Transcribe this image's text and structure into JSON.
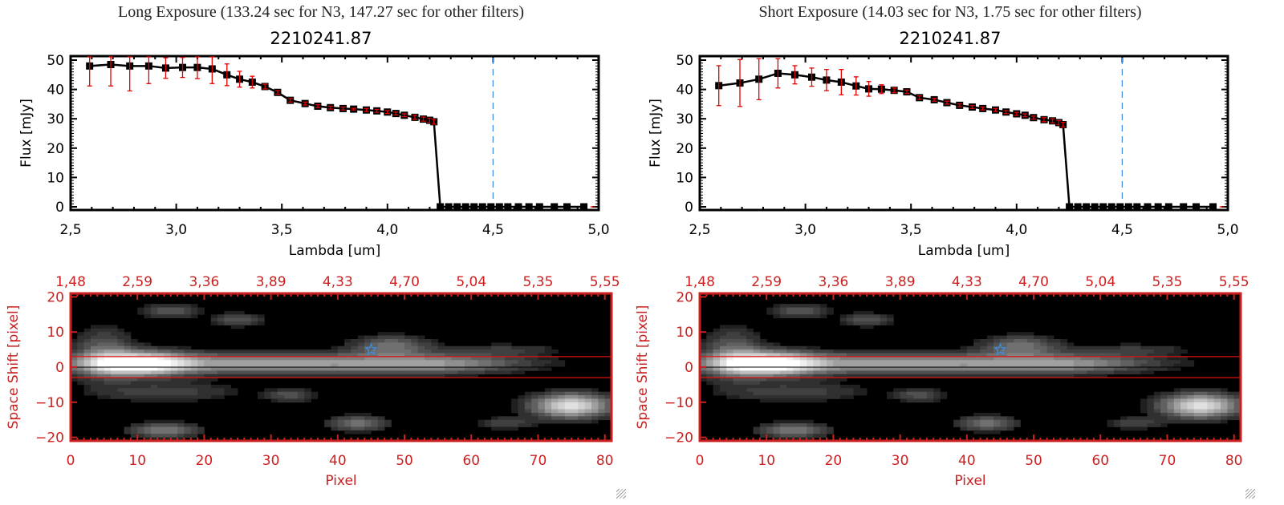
{
  "panels": [
    {
      "title": "Long Exposure (133.24 sec for N3, 147.27 sec for other filters)",
      "object_id": "2210241.87"
    },
    {
      "title": "Short Exposure (14.03 sec for N3, 1.75 sec for other filters)",
      "object_id": "2210241.87"
    }
  ],
  "colors": {
    "spectrum": "#000000",
    "error": "#e00000",
    "marker_line": "#3a8ee6",
    "image_axis": "#cc2020",
    "aperture": "#dd1111"
  },
  "chart_data": [
    {
      "type": "line",
      "title": "2210241.87",
      "xlabel": "Lambda [um]",
      "ylabel": "Flux [mJy]",
      "xlim": [
        2.5,
        5.0
      ],
      "ylim": [
        0,
        50
      ],
      "xticks": [
        "2.5",
        "3.0",
        "3.5",
        "4.0",
        "4.5",
        "5.0"
      ],
      "yticks": [
        "0",
        "10",
        "20",
        "30",
        "40",
        "50"
      ],
      "vline_x": 4.5,
      "x": [
        2.59,
        2.69,
        2.78,
        2.87,
        2.95,
        3.03,
        3.1,
        3.17,
        3.24,
        3.3,
        3.36,
        3.42,
        3.48,
        3.54,
        3.61,
        3.67,
        3.73,
        3.79,
        3.84,
        3.9,
        3.95,
        4.0,
        4.04,
        4.08,
        4.13,
        4.17,
        4.2,
        4.22,
        4.25,
        4.29,
        4.33,
        4.37,
        4.41,
        4.45,
        4.49,
        4.53,
        4.57,
        4.62,
        4.67,
        4.72,
        4.79,
        4.85,
        4.93
      ],
      "y": [
        48,
        48.5,
        48,
        48,
        47.3,
        47.5,
        47.5,
        47,
        45,
        43.5,
        42.5,
        41,
        39,
        36.3,
        35.2,
        34.3,
        33.8,
        33.5,
        33.3,
        33,
        32.7,
        32.3,
        31.8,
        31.2,
        30.5,
        29.9,
        29.5,
        29,
        0,
        0,
        0,
        0,
        0,
        0,
        0,
        0,
        0,
        0,
        0,
        0,
        0,
        0,
        0
      ],
      "yerr": [
        6.8,
        7.3,
        8.5,
        6,
        3.5,
        3.4,
        3.8,
        5,
        3.7,
        2.7,
        2,
        0.8,
        0.6,
        0.6,
        0.5,
        0.5,
        0.5,
        0.5,
        0.3,
        0.5,
        0.5,
        0.5,
        0.5,
        0.5,
        0.7,
        0.7,
        0.7,
        0.8,
        0,
        0,
        0,
        0,
        0,
        0,
        0,
        0,
        0,
        0,
        0,
        0,
        0,
        0,
        0
      ]
    },
    {
      "type": "line",
      "title": "2210241.87",
      "xlabel": "Lambda [um]",
      "ylabel": "Flux [mJy]",
      "xlim": [
        2.5,
        5.0
      ],
      "ylim": [
        0,
        50
      ],
      "xticks": [
        "2.5",
        "3.0",
        "3.5",
        "4.0",
        "4.5",
        "5.0"
      ],
      "yticks": [
        "0",
        "10",
        "20",
        "30",
        "40",
        "50"
      ],
      "vline_x": 4.5,
      "x": [
        2.59,
        2.69,
        2.78,
        2.87,
        2.95,
        3.03,
        3.1,
        3.17,
        3.24,
        3.3,
        3.36,
        3.42,
        3.48,
        3.54,
        3.61,
        3.67,
        3.73,
        3.79,
        3.84,
        3.9,
        3.95,
        4.0,
        4.04,
        4.08,
        4.13,
        4.17,
        4.2,
        4.22,
        4.25,
        4.29,
        4.33,
        4.37,
        4.41,
        4.45,
        4.49,
        4.53,
        4.57,
        4.62,
        4.67,
        4.72,
        4.79,
        4.85,
        4.93
      ],
      "y": [
        41.3,
        42.2,
        43.5,
        45.5,
        45,
        44.2,
        43.2,
        42.5,
        41.2,
        40.2,
        40.1,
        39.7,
        39.2,
        37.2,
        36.5,
        35.5,
        34.6,
        34,
        33.5,
        33,
        32.3,
        31.7,
        31.2,
        30.4,
        29.7,
        29.3,
        28.7,
        28,
        0,
        0,
        0,
        0,
        0,
        0,
        0,
        0,
        0,
        0,
        0,
        0,
        0,
        0,
        0
      ],
      "yerr": [
        6.8,
        8,
        7,
        5,
        3.1,
        3.1,
        3.6,
        4.3,
        3.1,
        2.5,
        1.5,
        0.8,
        0.6,
        0.6,
        0.5,
        0.5,
        0.5,
        0.5,
        0.5,
        0.5,
        0.5,
        0.5,
        0.5,
        0.5,
        0.7,
        0.7,
        0.7,
        0.8,
        0,
        0,
        0,
        0,
        0,
        0,
        0,
        0,
        0,
        0,
        0,
        0,
        0,
        0,
        0
      ]
    },
    {
      "type": "heatmap",
      "xlabel": "Pixel",
      "ylabel": "Space Shift [pixel]",
      "xlim": [
        0,
        81
      ],
      "ylim": [
        -21,
        21
      ],
      "xticks": [
        "0",
        "10",
        "20",
        "30",
        "40",
        "50",
        "60",
        "70",
        "80"
      ],
      "yticks": [
        "-20",
        "-10",
        "0",
        "10",
        "20"
      ],
      "top_axis_ticks": [
        "1.48",
        "2.59",
        "3.36",
        "3.89",
        "4.33",
        "4.70",
        "5.04",
        "5.35",
        "5.55"
      ],
      "aperture_y": [
        -3,
        3
      ],
      "star_marker": {
        "x": 45,
        "y": 5
      },
      "sources": [
        {
          "x": 10,
          "y": 1,
          "sx": 5,
          "sy": 2.2,
          "amp": 1.0
        },
        {
          "x": 30,
          "y": 1,
          "sx": 20,
          "sy": 2,
          "amp": 0.55
        },
        {
          "x": 55,
          "y": 1,
          "sx": 8,
          "sy": 1.8,
          "amp": 0.3
        },
        {
          "x": 5,
          "y": 4,
          "sx": 3,
          "sy": 5,
          "amp": 0.3
        },
        {
          "x": 14,
          "y": -7,
          "sx": 8,
          "sy": 2,
          "amp": 0.18
        },
        {
          "x": 15,
          "y": 16,
          "sx": 3,
          "sy": 1.3,
          "amp": 0.28
        },
        {
          "x": 25,
          "y": 13.5,
          "sx": 2.5,
          "sy": 1.3,
          "amp": 0.26
        },
        {
          "x": 33,
          "y": -8,
          "sx": 2.5,
          "sy": 1.2,
          "amp": 0.25
        },
        {
          "x": 43,
          "y": -16,
          "sx": 3,
          "sy": 1.5,
          "amp": 0.35
        },
        {
          "x": 14,
          "y": -18,
          "sx": 3.5,
          "sy": 1.5,
          "amp": 0.38
        },
        {
          "x": 48,
          "y": 6,
          "sx": 4,
          "sy": 2,
          "amp": 0.35
        },
        {
          "x": 65,
          "y": 5,
          "sx": 6,
          "sy": 1.2,
          "amp": 0.15
        },
        {
          "x": 65,
          "y": -16,
          "sx": 3,
          "sy": 1.2,
          "amp": 0.2
        },
        {
          "x": 75,
          "y": -11,
          "sx": 4,
          "sy": 2.3,
          "amp": 0.85
        }
      ]
    }
  ]
}
